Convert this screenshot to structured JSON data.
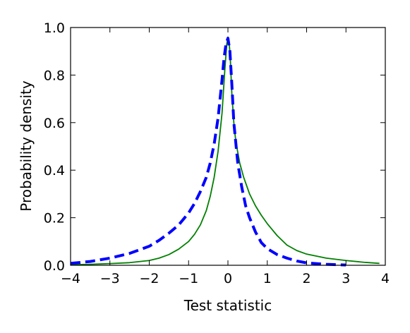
{
  "chart_data": {
    "type": "line",
    "xlabel": "Test statistic",
    "ylabel": "Probability density",
    "xlim": [
      -4,
      4
    ],
    "ylim": [
      0,
      1.0
    ],
    "x_ticks": [
      -4,
      -3,
      -2,
      -1,
      0,
      1,
      2,
      3,
      4
    ],
    "y_ticks": [
      0.0,
      0.2,
      0.4,
      0.6,
      0.8,
      1.0
    ],
    "x_tick_labels": [
      "−4",
      "−3",
      "−2",
      "−1",
      "0",
      "1",
      "2",
      "3",
      "4"
    ],
    "y_tick_labels": [
      "0.0",
      "0.2",
      "0.4",
      "0.6",
      "0.8",
      "1.0"
    ],
    "grid": false,
    "series": [
      {
        "color": "#008000",
        "style": "solid",
        "x": [
          -4.0,
          -3.5,
          -3.0,
          -2.5,
          -2.0,
          -1.75,
          -1.5,
          -1.25,
          -1.0,
          -0.85,
          -0.7,
          -0.55,
          -0.45,
          -0.35,
          -0.25,
          -0.15,
          -0.08,
          -0.03,
          0.0,
          0.03,
          0.06,
          0.1,
          0.15,
          0.2,
          0.3,
          0.4,
          0.55,
          0.7,
          0.85,
          1.0,
          1.25,
          1.5,
          1.75,
          2.0,
          2.5,
          3.0,
          3.5,
          3.85
        ],
        "y": [
          0.002,
          0.004,
          0.007,
          0.011,
          0.02,
          0.03,
          0.045,
          0.068,
          0.1,
          0.13,
          0.17,
          0.23,
          0.29,
          0.37,
          0.48,
          0.64,
          0.82,
          0.93,
          0.96,
          0.94,
          0.87,
          0.72,
          0.6,
          0.52,
          0.43,
          0.37,
          0.3,
          0.25,
          0.21,
          0.175,
          0.125,
          0.085,
          0.062,
          0.047,
          0.03,
          0.02,
          0.012,
          0.008
        ]
      },
      {
        "color": "#0000ff",
        "style": "dashed",
        "x": [
          -4.0,
          -3.5,
          -3.0,
          -2.5,
          -2.0,
          -1.75,
          -1.5,
          -1.25,
          -1.0,
          -0.85,
          -0.7,
          -0.55,
          -0.45,
          -0.35,
          -0.25,
          -0.15,
          -0.1,
          -0.05,
          0.0,
          0.05,
          0.1,
          0.15,
          0.25,
          0.35,
          0.45,
          0.55,
          0.7,
          0.85,
          1.0,
          1.25,
          1.5,
          1.75,
          2.0,
          2.5,
          3.0
        ],
        "y": [
          0.008,
          0.016,
          0.03,
          0.05,
          0.08,
          0.105,
          0.135,
          0.17,
          0.22,
          0.26,
          0.31,
          0.37,
          0.43,
          0.51,
          0.62,
          0.78,
          0.87,
          0.93,
          0.955,
          0.9,
          0.76,
          0.6,
          0.43,
          0.33,
          0.25,
          0.2,
          0.14,
          0.095,
          0.07,
          0.045,
          0.03,
          0.018,
          0.01,
          0.004,
          0.001
        ]
      }
    ]
  }
}
